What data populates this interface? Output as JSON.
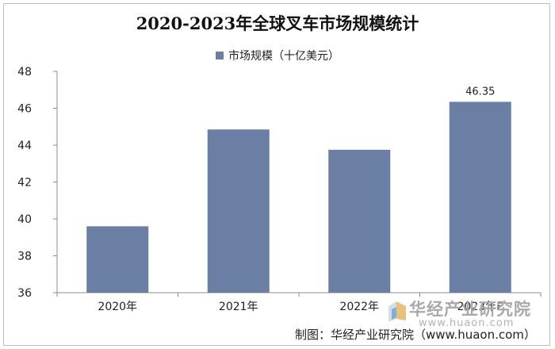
{
  "chart_data": {
    "type": "bar",
    "title": "2020-2023年全球叉车市场规模统计",
    "legend": {
      "placement": "top",
      "entries": [
        "市场规模（十亿美元）"
      ]
    },
    "categories": [
      "2020年",
      "2021年",
      "2022年",
      "2023年E"
    ],
    "series": [
      {
        "name": "市场规模（十亿美元）",
        "values": [
          39.6,
          44.85,
          43.75,
          46.35
        ],
        "color": "#6a7fa3"
      }
    ],
    "data_labels": [
      null,
      null,
      null,
      "46.35"
    ],
    "xlabel": "",
    "ylabel": "",
    "ylim": [
      36,
      48
    ],
    "yticks": [
      36,
      38,
      40,
      42,
      44,
      46,
      48
    ],
    "grid": false
  },
  "watermark": {
    "brand": "华经产业研究院",
    "url": "www.huaon.com"
  },
  "source": "制图：华经产业研究院（www.huaon.com）"
}
